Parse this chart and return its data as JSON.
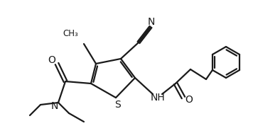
{
  "bg_color": "#ffffff",
  "line_color": "#1a1a1a",
  "line_width": 1.6,
  "figsize": [
    3.56,
    1.95
  ],
  "dpi": 100,
  "S_label": "S",
  "N_label": "N",
  "NH_label": "NH",
  "O_label": "O",
  "H_label": "H"
}
